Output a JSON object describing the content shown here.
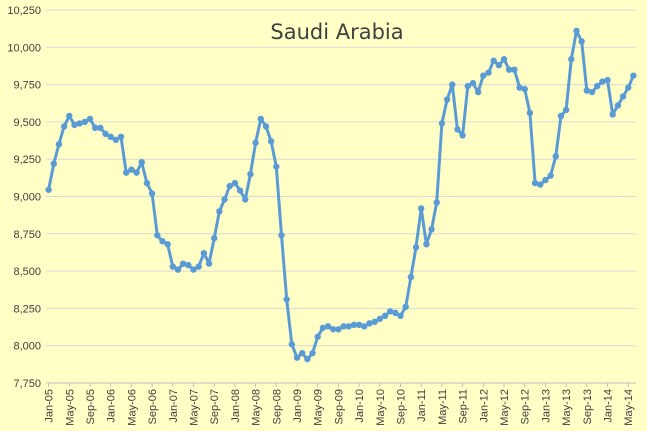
{
  "chart_data": {
    "type": "line",
    "title": "Saudi Arabia",
    "xlabel": "",
    "ylabel": "",
    "ylim": [
      7750,
      10250
    ],
    "yticks": [
      7750,
      8000,
      8250,
      8500,
      8750,
      9000,
      9250,
      9500,
      9750,
      10000,
      10250
    ],
    "ytick_labels": [
      "7,750",
      "8,000",
      "8,250",
      "8,500",
      "8,750",
      "9,000",
      "9,250",
      "9,500",
      "9,750",
      "10,000",
      "10,250"
    ],
    "xtick_labels": [
      "Jan-05",
      "May-05",
      "Sep-05",
      "Jan-06",
      "May-06",
      "Sep-06",
      "Jan-07",
      "May-07",
      "Sep-07",
      "Jan-08",
      "May-08",
      "Sep-08",
      "Jan-09",
      "May-09",
      "Sep-09",
      "Jan-10",
      "May-10",
      "Sep-10",
      "Jan-11",
      "May-11",
      "Sep-11",
      "Jan-12",
      "May-12",
      "Sep-12",
      "Jan-13",
      "May-13",
      "Sep-13",
      "Jan-14",
      "May-14"
    ],
    "grid": "horizontal",
    "legend": "none",
    "line_color": "#5b9bd5",
    "series": [
      {
        "values": [
          9045,
          9220,
          9350,
          9470,
          9540,
          9480,
          9490,
          9500,
          9520,
          9460,
          9460,
          9420,
          9400,
          9380,
          9400,
          9160,
          9180,
          9160,
          9230,
          9090,
          9020,
          8740,
          8700,
          8680,
          8530,
          8510,
          8550,
          8540,
          8510,
          8530,
          8620,
          8550,
          8720,
          8900,
          8980,
          9070,
          9090,
          9040,
          8980,
          9150,
          9360,
          9520,
          9470,
          9370,
          9200,
          8740,
          8310,
          8010,
          7920,
          7950,
          7910,
          7950,
          8060,
          8120,
          8130,
          8110,
          8110,
          8130,
          8130,
          8140,
          8140,
          8130,
          8150,
          8160,
          8180,
          8200,
          8230,
          8220,
          8200,
          8260,
          8460,
          8660,
          8920,
          8680,
          8780,
          8960,
          9490,
          9650,
          9750,
          9450,
          9410,
          9740,
          9760,
          9700,
          9810,
          9830,
          9910,
          9880,
          9920,
          9850,
          9850,
          9730,
          9720,
          9560,
          9090,
          9080,
          9110,
          9140,
          9270,
          9540,
          9580,
          9920,
          10110,
          10040,
          9710,
          9700,
          9740,
          9770,
          9780,
          9550,
          9610,
          9670,
          9730,
          9810
        ]
      }
    ]
  }
}
